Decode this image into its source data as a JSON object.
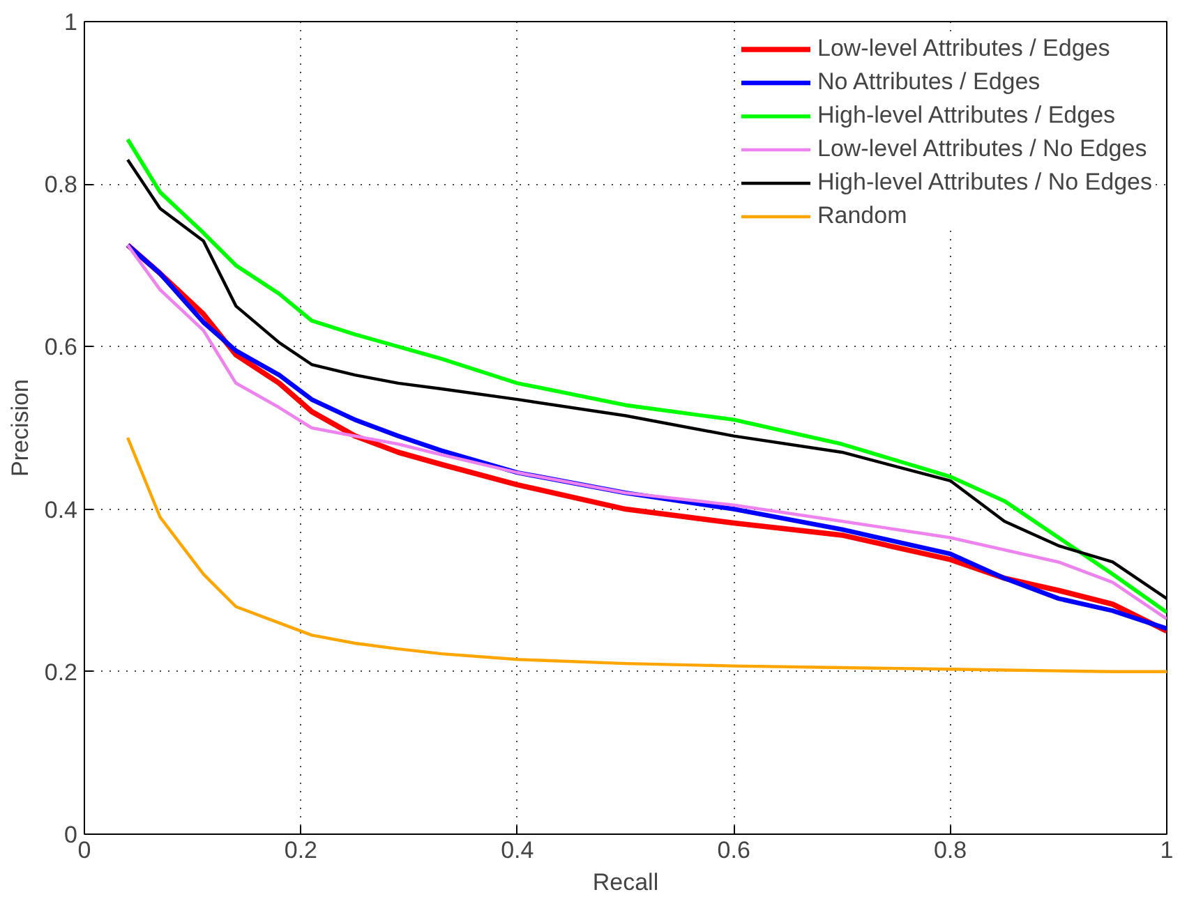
{
  "chart_data": {
    "type": "line",
    "xlabel": "Recall",
    "ylabel": "Precision",
    "x": [
      0.04,
      0.07,
      0.11,
      0.14,
      0.18,
      0.21,
      0.25,
      0.29,
      0.33,
      0.4,
      0.5,
      0.6,
      0.7,
      0.8,
      0.85,
      0.9,
      0.95,
      1.0
    ],
    "series": [
      {
        "name": "Low-level Attributes / Edges",
        "color": "#ff0000",
        "values": [
          0.725,
          0.69,
          0.64,
          0.59,
          0.555,
          0.52,
          0.49,
          0.47,
          0.455,
          0.43,
          0.4,
          0.383,
          0.368,
          0.338,
          0.315,
          0.3,
          0.283,
          0.25
        ]
      },
      {
        "name": "No Attributes / Edges",
        "color": "#0000ff",
        "values": [
          0.725,
          0.69,
          0.63,
          0.595,
          0.565,
          0.535,
          0.51,
          0.49,
          0.472,
          0.445,
          0.42,
          0.4,
          0.375,
          0.345,
          0.315,
          0.29,
          0.275,
          0.253
        ]
      },
      {
        "name": "High-level Attributes / Edges",
        "color": "#00ff00",
        "values": [
          0.855,
          0.79,
          0.74,
          0.7,
          0.665,
          0.632,
          0.615,
          0.6,
          0.585,
          0.555,
          0.528,
          0.51,
          0.48,
          0.44,
          0.41,
          0.365,
          0.32,
          0.273
        ]
      },
      {
        "name": "Low-level Attributes / No Edges",
        "color": "#ee82ee",
        "values": [
          0.725,
          0.67,
          0.62,
          0.555,
          0.525,
          0.5,
          0.49,
          0.48,
          0.467,
          0.445,
          0.42,
          0.405,
          0.385,
          0.365,
          0.35,
          0.335,
          0.31,
          0.265
        ]
      },
      {
        "name": "High-level Attributes / No Edges",
        "color": "#000000",
        "values": [
          0.83,
          0.77,
          0.73,
          0.65,
          0.605,
          0.578,
          0.565,
          0.555,
          0.548,
          0.535,
          0.515,
          0.49,
          0.47,
          0.435,
          0.385,
          0.355,
          0.335,
          0.29
        ]
      },
      {
        "name": "Random",
        "color": "#ffa500",
        "values": [
          0.488,
          0.39,
          0.32,
          0.28,
          0.26,
          0.245,
          0.235,
          0.228,
          0.222,
          0.215,
          0.21,
          0.207,
          0.205,
          0.203,
          0.202,
          0.201,
          0.2,
          0.2
        ]
      }
    ],
    "xlim": [
      0,
      1
    ],
    "ylim": [
      0,
      1
    ],
    "xticks": [
      0,
      0.2,
      0.4,
      0.6,
      0.8,
      1
    ],
    "yticks": [
      0,
      0.2,
      0.4,
      0.6,
      0.8,
      1
    ],
    "grid": true,
    "legend": "top right",
    "line_style": "solid"
  }
}
